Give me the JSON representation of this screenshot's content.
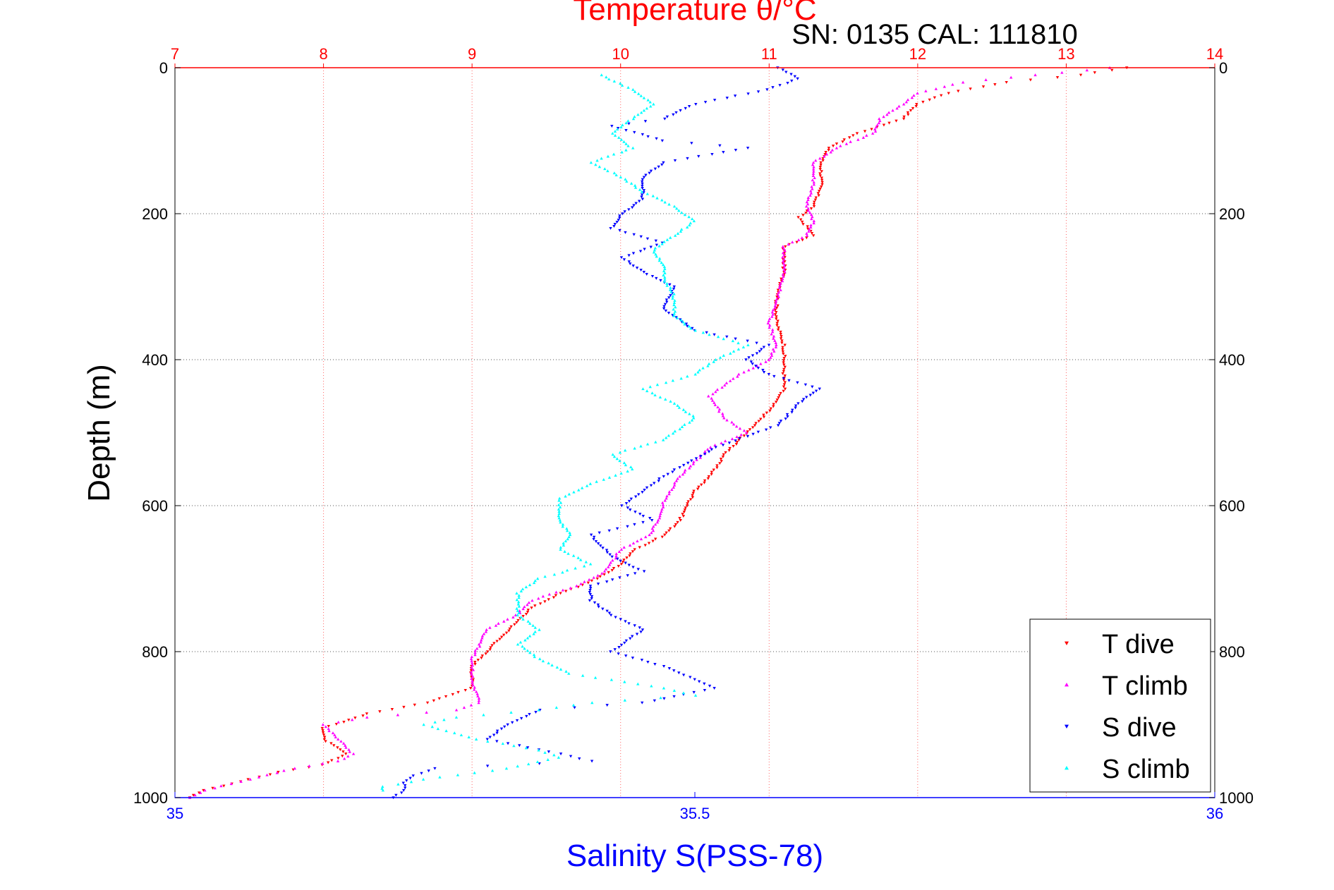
{
  "chart_data": {
    "type": "scatter",
    "title": "Temperature θ/°C",
    "subtitle": "SN: 0135  CAL: 111810",
    "ylabel": "Depth (m)",
    "xlabel": "Salinity S(PSS-78)",
    "ylim": [
      1000,
      0
    ],
    "yticks": [
      "0",
      "200",
      "400",
      "600",
      "800",
      "1000"
    ],
    "top_axis": {
      "label": "Temperature θ/°C",
      "range": [
        7,
        14
      ],
      "ticks": [
        "7",
        "8",
        "9",
        "10",
        "11",
        "12",
        "13",
        "14"
      ],
      "color": "#ff0000"
    },
    "bottom_axis": {
      "label": "Salinity S(PSS-78)",
      "range": [
        35,
        36
      ],
      "ticks": [
        "35",
        "35.5",
        "36"
      ],
      "color": "#0000ff"
    },
    "grid": true,
    "legend_position": "bottom-right",
    "series": [
      {
        "name": "T dive",
        "color": "#ff0000",
        "marker": "triangle-down",
        "axis": "temperature",
        "points": [
          [
            13.4,
            0
          ],
          [
            13.1,
            10
          ],
          [
            12.6,
            20
          ],
          [
            12.2,
            35
          ],
          [
            12.0,
            50
          ],
          [
            11.9,
            70
          ],
          [
            11.6,
            90
          ],
          [
            11.4,
            110
          ],
          [
            11.35,
            130
          ],
          [
            11.35,
            160
          ],
          [
            11.3,
            190
          ],
          [
            11.2,
            205
          ],
          [
            11.3,
            230
          ],
          [
            11.1,
            245
          ],
          [
            11.1,
            280
          ],
          [
            11.05,
            320
          ],
          [
            11.05,
            350
          ],
          [
            11.1,
            380
          ],
          [
            11.1,
            410
          ],
          [
            11.1,
            440
          ],
          [
            11.0,
            470
          ],
          [
            10.9,
            490
          ],
          [
            10.8,
            510
          ],
          [
            10.7,
            530
          ],
          [
            10.6,
            560
          ],
          [
            10.5,
            580
          ],
          [
            10.45,
            600
          ],
          [
            10.4,
            620
          ],
          [
            10.3,
            640
          ],
          [
            10.1,
            660
          ],
          [
            10.0,
            680
          ],
          [
            9.85,
            700
          ],
          [
            9.6,
            720
          ],
          [
            9.4,
            740
          ],
          [
            9.3,
            760
          ],
          [
            9.2,
            780
          ],
          [
            9.1,
            800
          ],
          [
            9.0,
            820
          ],
          [
            9.0,
            850
          ],
          [
            8.7,
            870
          ],
          [
            8.3,
            885
          ],
          [
            8.0,
            905
          ],
          [
            8.0,
            920
          ],
          [
            8.15,
            940
          ],
          [
            8.0,
            955
          ],
          [
            7.7,
            965
          ],
          [
            7.5,
            975
          ],
          [
            7.2,
            990
          ],
          [
            7.1,
            1000
          ]
        ]
      },
      {
        "name": "T climb",
        "color": "#ff00ff",
        "marker": "triangle-up",
        "axis": "temperature",
        "points": [
          [
            13.3,
            0
          ],
          [
            12.8,
            10
          ],
          [
            12.3,
            20
          ],
          [
            12.0,
            35
          ],
          [
            11.9,
            50
          ],
          [
            11.75,
            70
          ],
          [
            11.7,
            90
          ],
          [
            11.45,
            110
          ],
          [
            11.3,
            130
          ],
          [
            11.3,
            160
          ],
          [
            11.25,
            190
          ],
          [
            11.3,
            210
          ],
          [
            11.25,
            230
          ],
          [
            11.1,
            245
          ],
          [
            11.1,
            280
          ],
          [
            11.05,
            320
          ],
          [
            11.0,
            350
          ],
          [
            11.05,
            380
          ],
          [
            11.0,
            400
          ],
          [
            10.8,
            420
          ],
          [
            10.6,
            450
          ],
          [
            10.7,
            480
          ],
          [
            10.85,
            500
          ],
          [
            10.6,
            520
          ],
          [
            10.5,
            540
          ],
          [
            10.4,
            560
          ],
          [
            10.3,
            590
          ],
          [
            10.25,
            620
          ],
          [
            10.2,
            640
          ],
          [
            10.0,
            660
          ],
          [
            9.9,
            690
          ],
          [
            9.7,
            710
          ],
          [
            9.4,
            730
          ],
          [
            9.3,
            750
          ],
          [
            9.1,
            770
          ],
          [
            9.05,
            790
          ],
          [
            9.0,
            810
          ],
          [
            9.0,
            840
          ],
          [
            9.05,
            870
          ],
          [
            8.9,
            880
          ],
          [
            8.3,
            890
          ],
          [
            8.0,
            900
          ],
          [
            8.1,
            920
          ],
          [
            8.2,
            940
          ],
          [
            8.1,
            950
          ],
          [
            7.8,
            960
          ],
          [
            7.5,
            975
          ],
          [
            7.2,
            990
          ],
          [
            7.1,
            1000
          ]
        ]
      },
      {
        "name": "S dive",
        "color": "#0000ff",
        "marker": "triangle-down",
        "axis": "salinity",
        "points": [
          [
            35.58,
            0
          ],
          [
            35.6,
            15
          ],
          [
            35.57,
            30
          ],
          [
            35.5,
            50
          ],
          [
            35.47,
            70
          ],
          [
            35.42,
            80
          ],
          [
            35.47,
            100
          ],
          [
            35.55,
            110
          ],
          [
            35.47,
            130
          ],
          [
            35.45,
            150
          ],
          [
            35.45,
            180
          ],
          [
            35.43,
            200
          ],
          [
            35.42,
            220
          ],
          [
            35.47,
            240
          ],
          [
            35.43,
            260
          ],
          [
            35.45,
            280
          ],
          [
            35.48,
            300
          ],
          [
            35.47,
            330
          ],
          [
            35.5,
            360
          ],
          [
            35.57,
            380
          ],
          [
            35.55,
            400
          ],
          [
            35.57,
            420
          ],
          [
            35.62,
            440
          ],
          [
            35.6,
            460
          ],
          [
            35.58,
            490
          ],
          [
            35.52,
            520
          ],
          [
            35.47,
            560
          ],
          [
            35.43,
            600
          ],
          [
            35.46,
            620
          ],
          [
            35.4,
            640
          ],
          [
            35.42,
            670
          ],
          [
            35.45,
            690
          ],
          [
            35.4,
            710
          ],
          [
            35.4,
            730
          ],
          [
            35.42,
            750
          ],
          [
            35.45,
            770
          ],
          [
            35.42,
            800
          ],
          [
            35.47,
            820
          ],
          [
            35.52,
            850
          ],
          [
            35.45,
            870
          ],
          [
            35.35,
            880
          ],
          [
            35.32,
            900
          ],
          [
            35.3,
            920
          ],
          [
            35.37,
            940
          ],
          [
            35.4,
            950
          ],
          [
            35.25,
            960
          ],
          [
            35.23,
            970
          ],
          [
            35.22,
            980
          ],
          [
            35.22,
            990
          ],
          [
            35.21,
            1000
          ]
        ]
      },
      {
        "name": "S climb",
        "color": "#00ffff",
        "marker": "triangle-up",
        "axis": "salinity",
        "points": [
          [
            35.41,
            10
          ],
          [
            35.44,
            30
          ],
          [
            35.46,
            50
          ],
          [
            35.44,
            70
          ],
          [
            35.42,
            90
          ],
          [
            35.44,
            110
          ],
          [
            35.4,
            130
          ],
          [
            35.43,
            150
          ],
          [
            35.45,
            170
          ],
          [
            35.48,
            190
          ],
          [
            35.5,
            210
          ],
          [
            35.48,
            230
          ],
          [
            35.46,
            250
          ],
          [
            35.47,
            270
          ],
          [
            35.47,
            290
          ],
          [
            35.48,
            310
          ],
          [
            35.48,
            340
          ],
          [
            35.5,
            360
          ],
          [
            35.55,
            380
          ],
          [
            35.52,
            400
          ],
          [
            35.5,
            420
          ],
          [
            35.45,
            440
          ],
          [
            35.48,
            460
          ],
          [
            35.5,
            480
          ],
          [
            35.47,
            510
          ],
          [
            35.42,
            530
          ],
          [
            35.44,
            550
          ],
          [
            35.4,
            570
          ],
          [
            35.37,
            590
          ],
          [
            35.37,
            620
          ],
          [
            35.38,
            640
          ],
          [
            35.37,
            660
          ],
          [
            35.4,
            680
          ],
          [
            35.35,
            700
          ],
          [
            35.33,
            720
          ],
          [
            35.33,
            750
          ],
          [
            35.35,
            770
          ],
          [
            35.33,
            790
          ],
          [
            35.35,
            810
          ],
          [
            35.38,
            830
          ],
          [
            35.47,
            850
          ],
          [
            35.5,
            860
          ],
          [
            35.4,
            870
          ],
          [
            35.35,
            880
          ],
          [
            35.27,
            890
          ],
          [
            35.24,
            900
          ],
          [
            35.29,
            920
          ],
          [
            35.35,
            935
          ],
          [
            35.37,
            945
          ],
          [
            35.32,
            960
          ],
          [
            35.24,
            975
          ],
          [
            35.2,
            985
          ],
          [
            35.2,
            990
          ]
        ]
      }
    ]
  }
}
